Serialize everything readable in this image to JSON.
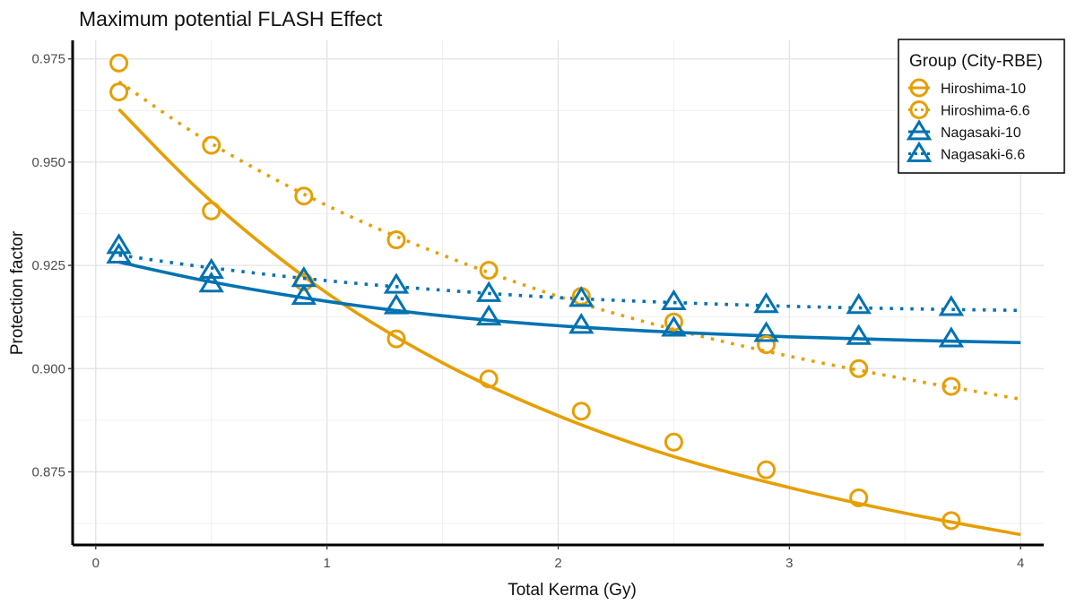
{
  "chart_data": {
    "type": "scatter",
    "title": "Maximum potential FLASH Effect",
    "xlabel": "Total Kerma (Gy)",
    "ylabel": "Protection factor",
    "xlim": [
      -0.1,
      4.1
    ],
    "ylim": [
      0.8573,
      0.9795
    ],
    "x_ticks": [
      0,
      1,
      2,
      3,
      4
    ],
    "x_tick_labels": [
      "0",
      "1",
      "2",
      "3",
      "4"
    ],
    "y_ticks": [
      0.875,
      0.9,
      0.925,
      0.95,
      0.975
    ],
    "y_tick_labels": [
      "0.875",
      "0.900",
      "0.925",
      "0.950",
      "0.975"
    ],
    "grid": true,
    "legend": {
      "title": "Group (City-RBE)",
      "position": "top-right"
    },
    "series": [
      {
        "name": "Hiroshima-10",
        "color": "#E69F00",
        "marker": "circle",
        "line": "solid",
        "x": [
          0.1,
          0.5,
          0.9,
          1.3,
          1.7,
          2.1,
          2.5,
          2.9,
          3.3,
          3.7
        ],
        "y": [
          0.967,
          0.9382,
          0.921,
          0.9072,
          0.8975,
          0.8897,
          0.8822,
          0.8755,
          0.8687,
          0.8632
        ],
        "fit_x": [
          0.1,
          0.5,
          1.0,
          1.5,
          2.0,
          2.5,
          3.0,
          3.5,
          4.0
        ],
        "fit_y": [
          0.9628,
          0.9405,
          0.9183,
          0.9014,
          0.8886,
          0.8787,
          0.8712,
          0.865,
          0.8598
        ]
      },
      {
        "name": "Hiroshima-6.6",
        "color": "#E69F00",
        "marker": "circle",
        "line": "dotted",
        "x": [
          0.1,
          0.5,
          0.9,
          1.3,
          1.7,
          2.1,
          2.5,
          2.9,
          3.3,
          3.7
        ],
        "y": [
          0.974,
          0.9541,
          0.9418,
          0.9312,
          0.9238,
          0.9175,
          0.9113,
          0.9058,
          0.9,
          0.8957
        ],
        "fit_x": [
          0.1,
          0.5,
          1.0,
          1.5,
          2.0,
          2.5,
          3.0,
          3.5,
          4.0
        ],
        "fit_y": [
          0.9695,
          0.9545,
          0.9395,
          0.9275,
          0.9175,
          0.9095,
          0.903,
          0.8975,
          0.8926
        ]
      },
      {
        "name": "Nagasaki-10",
        "color": "#0072B2",
        "marker": "triangle",
        "line": "solid",
        "x": [
          0.1,
          0.5,
          0.9,
          1.3,
          1.7,
          2.1,
          2.5,
          2.9,
          3.3,
          3.7
        ],
        "y": [
          0.9275,
          0.9205,
          0.9175,
          0.9152,
          0.9125,
          0.9105,
          0.9098,
          0.9085,
          0.9078,
          0.9072
        ],
        "fit_x": [
          0.1,
          0.5,
          1.0,
          1.5,
          2.0,
          2.5,
          3.0,
          3.5,
          4.0
        ],
        "fit_y": [
          0.9258,
          0.921,
          0.9163,
          0.9128,
          0.9104,
          0.9088,
          0.9077,
          0.9069,
          0.9063
        ]
      },
      {
        "name": "Nagasaki-6.6",
        "color": "#0072B2",
        "marker": "triangle",
        "line": "dotted",
        "x": [
          0.1,
          0.5,
          0.9,
          1.3,
          1.7,
          2.1,
          2.5,
          2.9,
          3.3,
          3.7
        ],
        "y": [
          0.9298,
          0.9238,
          0.9218,
          0.9202,
          0.9182,
          0.917,
          0.9162,
          0.9155,
          0.9153,
          0.9148
        ],
        "fit_x": [
          0.1,
          0.5,
          1.0,
          1.5,
          2.0,
          2.5,
          3.0,
          3.5,
          4.0
        ],
        "fit_y": [
          0.9275,
          0.9244,
          0.9213,
          0.919,
          0.9172,
          0.916,
          0.9151,
          0.9145,
          0.9141
        ]
      }
    ]
  }
}
